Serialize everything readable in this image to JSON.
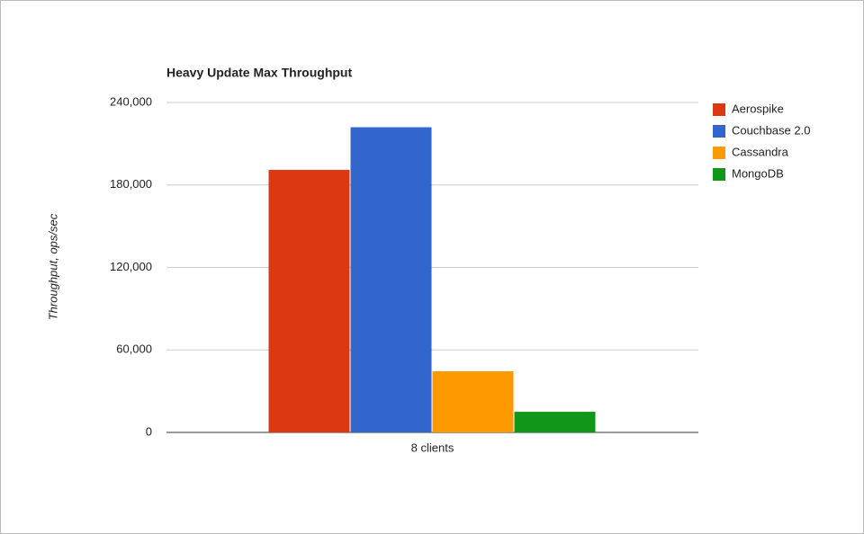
{
  "chart_data": {
    "type": "bar",
    "title": "Heavy Update Max Throughput",
    "y_label": "Throughput, ops/sec",
    "categories": [
      "8 clients"
    ],
    "series": [
      {
        "name": "Aerospike",
        "color": "#dc3912",
        "values": [
          191000
        ]
      },
      {
        "name": "Couchbase 2.0",
        "color": "#3366cc",
        "values": [
          222000
        ]
      },
      {
        "name": "Cassandra",
        "color": "#ff9900",
        "values": [
          44500
        ]
      },
      {
        "name": "MongoDB",
        "color": "#109618",
        "values": [
          15000
        ]
      }
    ],
    "ylim": [
      0,
      240000
    ],
    "yticks": [
      0,
      {
        "value": 60000,
        "label": "60,000"
      },
      {
        "value": 120000,
        "label": "120,000"
      },
      {
        "value": 180000,
        "label": "180,000"
      },
      {
        "value": 240000,
        "label": "240,000"
      }
    ],
    "grid": true,
    "legend": "right"
  }
}
